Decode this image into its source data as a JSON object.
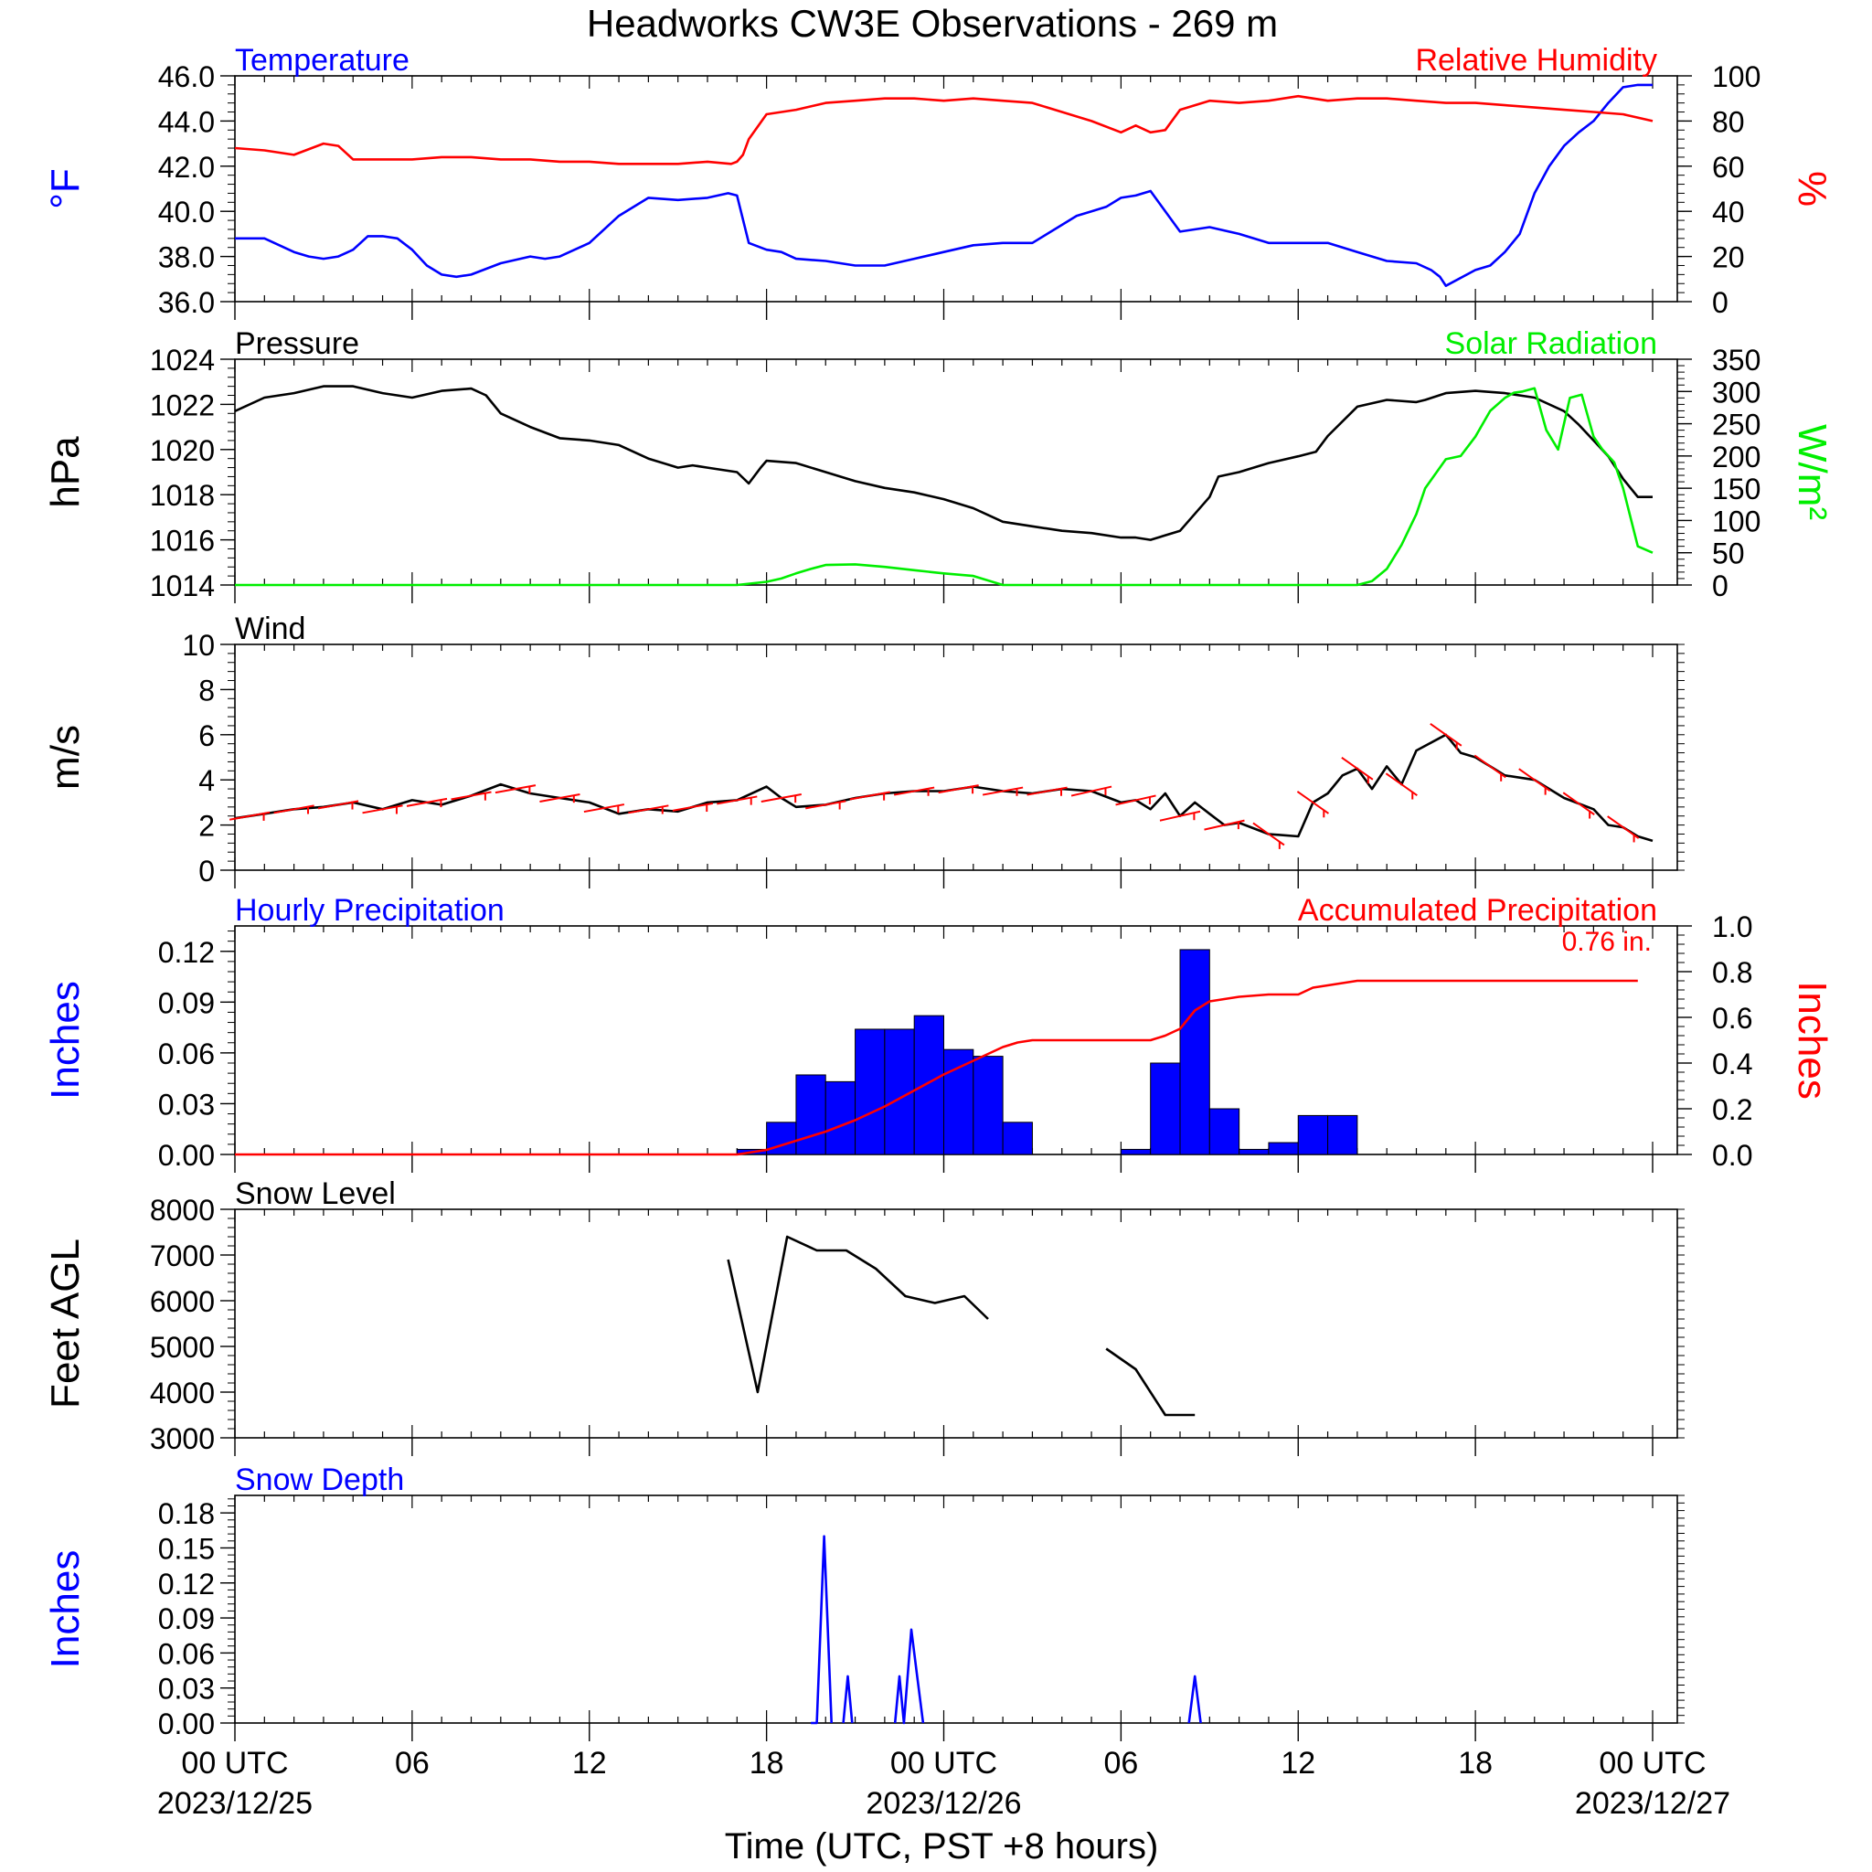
{
  "title": "Headworks CW3E Observations - 269 m",
  "xlabel": "Time (UTC, PST +8 hours)",
  "colors": {
    "blue": "#0000ff",
    "red": "#ff0000",
    "green": "#00ee00",
    "black": "#000000"
  },
  "x_axis": {
    "range_hours": [
      0,
      48
    ],
    "ticks": [
      {
        "h": 0,
        "label": "00 UTC",
        "date": "2023/12/25"
      },
      {
        "h": 6,
        "label": "06",
        "date": ""
      },
      {
        "h": 12,
        "label": "12",
        "date": ""
      },
      {
        "h": 18,
        "label": "18",
        "date": ""
      },
      {
        "h": 24,
        "label": "00 UTC",
        "date": "2023/12/26"
      },
      {
        "h": 30,
        "label": "06",
        "date": ""
      },
      {
        "h": 36,
        "label": "12",
        "date": ""
      },
      {
        "h": 42,
        "label": "18",
        "date": ""
      },
      {
        "h": 48,
        "label": "00 UTC",
        "date": "2023/12/27"
      }
    ]
  },
  "chart_data": [
    {
      "type": "line",
      "id": "temp_rh",
      "left_title": "Temperature",
      "right_title": "Relative Humidity",
      "ylabel_left": "°F",
      "ylabel_right": "%",
      "ylim_left": [
        36,
        46
      ],
      "yticks_left": [
        "36.0",
        "38.0",
        "40.0",
        "42.0",
        "44.0",
        "46.0"
      ],
      "ylim_right": [
        0,
        100
      ],
      "yticks_right": [
        "0",
        "20",
        "40",
        "60",
        "80",
        "100"
      ],
      "series": [
        {
          "name": "Temperature",
          "axis": "left",
          "color": "#0000ff",
          "x": [
            0,
            1,
            2,
            2.5,
            3,
            3.5,
            4,
            4.5,
            5,
            5.5,
            6,
            6.5,
            7,
            7.5,
            8,
            9,
            10,
            10.5,
            11,
            12,
            13,
            14,
            15,
            16,
            16.7,
            17,
            17.4,
            18,
            18.5,
            19,
            20,
            21,
            22,
            23,
            24,
            25,
            26,
            27,
            28,
            28.5,
            29,
            29.5,
            30,
            30.5,
            31,
            32,
            33,
            34,
            35,
            36,
            37,
            38,
            39,
            40,
            40.5,
            40.8,
            41,
            42,
            42.5,
            43,
            43.5,
            44,
            44.5,
            45,
            45.5,
            46,
            46.5,
            47,
            47.5,
            48
          ],
          "y": [
            38.8,
            38.8,
            38.2,
            38.0,
            37.9,
            38.0,
            38.3,
            38.9,
            38.9,
            38.8,
            38.3,
            37.6,
            37.2,
            37.1,
            37.2,
            37.7,
            38.0,
            37.9,
            38.0,
            38.6,
            39.8,
            40.6,
            40.5,
            40.6,
            40.8,
            40.7,
            38.6,
            38.3,
            38.2,
            37.9,
            37.8,
            37.6,
            37.6,
            37.9,
            38.2,
            38.5,
            38.6,
            38.6,
            39.4,
            39.8,
            40.0,
            40.2,
            40.6,
            40.7,
            40.9,
            39.1,
            39.3,
            39.0,
            38.6,
            38.6,
            38.6,
            38.2,
            37.8,
            37.7,
            37.4,
            37.1,
            36.7,
            37.4,
            37.6,
            38.2,
            39.0,
            40.8,
            42.0,
            42.9,
            43.5,
            44.0,
            44.8,
            45.5,
            45.6,
            45.6
          ]
        },
        {
          "name": "Relative Humidity",
          "axis": "right",
          "color": "#ff0000",
          "x": [
            0,
            1,
            2,
            3,
            3.5,
            4,
            5,
            6,
            7,
            8,
            9,
            10,
            11,
            12,
            13,
            14,
            15,
            16,
            16.8,
            17,
            17.2,
            17.4,
            18,
            19,
            20,
            21,
            22,
            23,
            24,
            25,
            26,
            27,
            28,
            29,
            30,
            30.5,
            31,
            31.5,
            32,
            33,
            34,
            35,
            36,
            37,
            38,
            39,
            40,
            41,
            42,
            43,
            44,
            45,
            46,
            47,
            48
          ],
          "y": [
            68,
            67,
            65,
            70,
            69,
            63,
            63,
            63,
            64,
            64,
            63,
            63,
            62,
            62,
            61,
            61,
            61,
            62,
            61,
            62,
            65,
            72,
            83,
            85,
            88,
            89,
            90,
            90,
            89,
            90,
            89,
            88,
            84,
            80,
            75,
            78,
            75,
            76,
            85,
            89,
            88,
            89,
            91,
            89,
            90,
            90,
            89,
            88,
            88,
            87,
            86,
            85,
            84,
            83,
            80
          ]
        }
      ]
    },
    {
      "type": "line",
      "id": "pres_solar",
      "left_title": "Pressure",
      "right_title": "Solar Radiation",
      "ylabel_left": "hPa",
      "ylabel_right": "W/m²",
      "ylim_left": [
        1014,
        1024
      ],
      "yticks_left": [
        "1014",
        "1016",
        "1018",
        "1020",
        "1022",
        "1024"
      ],
      "ylim_right": [
        0,
        350
      ],
      "yticks_right": [
        "0",
        "50",
        "100",
        "150",
        "200",
        "250",
        "300",
        "350"
      ],
      "series": [
        {
          "name": "Pressure",
          "axis": "left",
          "color": "#000000",
          "x": [
            0,
            1,
            2,
            3,
            4,
            5,
            6,
            7,
            8,
            8.5,
            9,
            10,
            11,
            12,
            13,
            14,
            15,
            15.5,
            16,
            17,
            17.4,
            17.8,
            18,
            19,
            20,
            21,
            22,
            23,
            24,
            25,
            25.5,
            26,
            27,
            28,
            29,
            30,
            30.5,
            31,
            32,
            33,
            33.3,
            34,
            35,
            36,
            36.6,
            37,
            38,
            39,
            40,
            40.3,
            41,
            42,
            43,
            44,
            45,
            45.5,
            46,
            46.5,
            47,
            47.5,
            48
          ],
          "y": [
            1021.7,
            1022.3,
            1022.5,
            1022.8,
            1022.8,
            1022.5,
            1022.3,
            1022.6,
            1022.7,
            1022.4,
            1021.6,
            1021.0,
            1020.5,
            1020.4,
            1020.2,
            1019.6,
            1019.2,
            1019.3,
            1019.2,
            1019.0,
            1018.5,
            1019.2,
            1019.5,
            1019.4,
            1019.0,
            1018.6,
            1018.3,
            1018.1,
            1017.8,
            1017.4,
            1017.1,
            1016.8,
            1016.6,
            1016.4,
            1016.3,
            1016.1,
            1016.1,
            1016.0,
            1016.4,
            1017.9,
            1018.8,
            1019.0,
            1019.4,
            1019.7,
            1019.9,
            1020.6,
            1021.9,
            1022.2,
            1022.1,
            1022.2,
            1022.5,
            1022.6,
            1022.5,
            1022.3,
            1021.7,
            1021.1,
            1020.4,
            1019.7,
            1018.7,
            1017.9,
            1017.9
          ]
        },
        {
          "name": "Solar Radiation",
          "axis": "right",
          "color": "#00ee00",
          "x": [
            0,
            15,
            16,
            17,
            18,
            18.5,
            19,
            19.5,
            20,
            21,
            22,
            23,
            24,
            25,
            26,
            27,
            28,
            29,
            30,
            31,
            32,
            33,
            34,
            35,
            36,
            37,
            38,
            38.5,
            39,
            39.5,
            40,
            40.3,
            41,
            41.5,
            42,
            42.5,
            43,
            43.3,
            43.6,
            44,
            44.4,
            44.8,
            45.2,
            45.6,
            46,
            46.3,
            46.7,
            47,
            47.5,
            48
          ],
          "y": [
            0,
            0,
            0,
            0,
            5,
            10,
            18,
            25,
            31,
            32,
            28,
            23,
            18,
            14,
            0,
            0,
            0,
            0,
            0,
            0,
            0,
            0,
            0,
            0,
            0,
            0,
            0,
            6,
            25,
            62,
            110,
            150,
            195,
            200,
            230,
            270,
            290,
            298,
            300,
            305,
            240,
            210,
            290,
            295,
            230,
            210,
            190,
            150,
            60,
            50
          ]
        }
      ]
    },
    {
      "type": "line",
      "id": "wind",
      "left_title": "Wind",
      "right_title": "",
      "ylabel_left": "m/s",
      "ylabel_right": "",
      "ylim_left": [
        0,
        10
      ],
      "yticks_left": [
        "0",
        "2",
        "4",
        "6",
        "8",
        "10"
      ],
      "series": [
        {
          "name": "Wind",
          "axis": "left",
          "color": "#000000",
          "x": [
            0,
            1,
            2,
            3,
            4,
            5,
            6,
            7,
            8,
            9,
            10,
            11,
            12,
            13,
            14,
            15,
            16,
            17,
            18,
            18.5,
            19,
            20,
            21,
            22,
            23,
            24,
            25,
            26,
            27,
            28,
            29,
            30,
            30.5,
            31,
            31.5,
            32,
            32.5,
            33,
            33.5,
            34,
            35,
            36,
            36.5,
            37,
            37.5,
            38,
            38.5,
            39,
            39.5,
            40,
            41,
            41.5,
            42,
            42.5,
            43,
            44,
            45,
            46,
            46.5,
            47,
            47.5,
            48
          ],
          "y": [
            2.3,
            2.5,
            2.7,
            2.8,
            3.0,
            2.7,
            3.1,
            2.9,
            3.3,
            3.8,
            3.4,
            3.2,
            3.0,
            2.5,
            2.7,
            2.6,
            3.0,
            3.1,
            3.7,
            3.2,
            2.8,
            2.9,
            3.2,
            3.4,
            3.5,
            3.5,
            3.7,
            3.5,
            3.4,
            3.6,
            3.5,
            3.0,
            3.1,
            2.7,
            3.4,
            2.4,
            3.0,
            2.5,
            2.0,
            2.1,
            1.6,
            1.5,
            3.0,
            3.4,
            4.2,
            4.5,
            3.6,
            4.6,
            3.8,
            5.3,
            6.0,
            5.2,
            5.0,
            4.6,
            4.2,
            4.0,
            3.2,
            2.7,
            2.0,
            1.9,
            1.5,
            1.3
          ]
        }
      ]
    },
    {
      "type": "bar",
      "id": "precip",
      "left_title": "Hourly Precipitation",
      "right_title": "Accumulated Precipitation",
      "annotation": "0.76 in.",
      "ylabel_left": "Inches",
      "ylabel_right": "Inches",
      "ylim_left": [
        0,
        0.135
      ],
      "yticks_left": [
        "0.00",
        "0.03",
        "0.06",
        "0.09",
        "0.12"
      ],
      "ylim_right": [
        0,
        1.0
      ],
      "yticks_right": [
        "0.0",
        "0.2",
        "0.4",
        "0.6",
        "0.8",
        "1.0"
      ],
      "bars": {
        "name": "Hourly Precipitation",
        "x": [
          17,
          18,
          19,
          20,
          21,
          22,
          23,
          24,
          25,
          26,
          27,
          30,
          31,
          32,
          33,
          34,
          35,
          36,
          37,
          38
        ],
        "values": [
          0.003,
          0.019,
          0.047,
          0.043,
          0.074,
          0.074,
          0.082,
          0.062,
          0.058,
          0.019,
          0,
          0.003,
          0.054,
          0.121,
          0.027,
          0.003,
          0.007,
          0.023,
          0.023,
          0
        ]
      },
      "series": [
        {
          "name": "Accumulated Precipitation",
          "axis": "right",
          "color": "#ff0000",
          "x": [
            0,
            17,
            17.5,
            18,
            18.5,
            19,
            19.5,
            20,
            21,
            22,
            23,
            24,
            25,
            26,
            26.5,
            27,
            28,
            29,
            30,
            30.5,
            31,
            31.5,
            32,
            32.5,
            33,
            34,
            35,
            36,
            36.5,
            37,
            37.5,
            38,
            40,
            42,
            44,
            46,
            47.5
          ],
          "y": [
            0,
            0,
            0.01,
            0.02,
            0.04,
            0.06,
            0.08,
            0.1,
            0.15,
            0.21,
            0.28,
            0.35,
            0.41,
            0.47,
            0.49,
            0.5,
            0.5,
            0.5,
            0.5,
            0.5,
            0.5,
            0.52,
            0.55,
            0.63,
            0.67,
            0.69,
            0.7,
            0.7,
            0.73,
            0.74,
            0.75,
            0.76,
            0.76,
            0.76,
            0.76,
            0.76,
            0.76
          ]
        }
      ]
    },
    {
      "type": "line",
      "id": "snowlevel",
      "left_title": "Snow Level",
      "right_title": "",
      "ylabel_left": "Feet AGL",
      "ylabel_right": "",
      "ylim_left": [
        3000,
        8000
      ],
      "yticks_left": [
        "3000",
        "4000",
        "5000",
        "6000",
        "7000",
        "8000"
      ],
      "segments": [
        {
          "name": "Snow Level",
          "color": "#000000",
          "x": [
            16.7,
            17.7,
            18.7,
            19.7,
            20.7,
            21.7,
            22.7,
            23.7,
            24.7,
            25.5
          ],
          "y": [
            6900,
            4000,
            7400,
            7100,
            7100,
            6700,
            6100,
            5950,
            6100,
            5600
          ]
        },
        {
          "name": "Snow Level",
          "color": "#000000",
          "x": [
            29.5,
            30.5,
            31.5,
            32.5
          ],
          "y": [
            4950,
            4500,
            3500,
            3500
          ]
        }
      ]
    },
    {
      "type": "line",
      "id": "snowdepth",
      "left_title": "Snow Depth",
      "right_title": "",
      "ylabel_left": "Inches",
      "ylabel_right": "",
      "ylim_left": [
        0,
        0.195
      ],
      "yticks_left": [
        "0.00",
        "0.03",
        "0.06",
        "0.09",
        "0.12",
        "0.15",
        "0.18"
      ],
      "series": [
        {
          "name": "Snow Depth",
          "axis": "left",
          "color": "#0000ff",
          "x": [
            19.5,
            19.7,
            19.95,
            20.2
          ],
          "y": [
            0,
            0,
            0.16,
            0
          ]
        },
        {
          "name": "Snow Depth",
          "axis": "left",
          "color": "#0000ff",
          "x": [
            20.6,
            20.75,
            20.9
          ],
          "y": [
            0,
            0.04,
            0
          ]
        },
        {
          "name": "Snow Depth",
          "axis": "left",
          "color": "#0000ff",
          "x": [
            22.35,
            22.5,
            22.65,
            22.9,
            23.1,
            23.3
          ],
          "y": [
            0,
            0.04,
            0,
            0.08,
            0.04,
            0
          ]
        },
        {
          "name": "Snow Depth",
          "axis": "left",
          "color": "#0000ff",
          "x": [
            32.3,
            32.5,
            32.7
          ],
          "y": [
            0,
            0.04,
            0
          ]
        }
      ]
    }
  ]
}
